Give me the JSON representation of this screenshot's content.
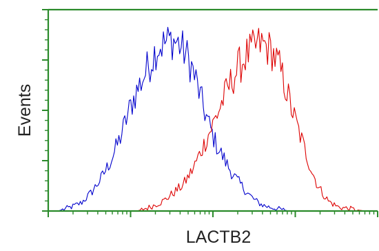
{
  "chart_data": {
    "type": "area",
    "title": "",
    "xlabel": "LACTB2",
    "ylabel": "Events",
    "xlim": [
      0,
      100
    ],
    "ylim": [
      0,
      100
    ],
    "x_scale": "log-decades",
    "grid": false,
    "legend": "none",
    "axis_color": "#2a8a2a",
    "series": [
      {
        "color": "#0000cc",
        "x": [
          3,
          7,
          10,
          13,
          16,
          19,
          22,
          25,
          27,
          29,
          31,
          33,
          35,
          37,
          39,
          41,
          43,
          45,
          47,
          49,
          51,
          53,
          55,
          57,
          59,
          61,
          63,
          65,
          67,
          70,
          73,
          77
        ],
        "y": [
          0,
          2,
          4,
          9,
          16,
          25,
          37,
          52,
          60,
          67,
          74,
          81,
          83,
          85,
          84,
          80,
          74,
          64,
          52,
          42,
          33,
          27,
          21,
          16,
          12,
          8,
          5,
          3,
          2,
          1,
          0,
          0
        ]
      },
      {
        "color": "#dd0000",
        "x": [
          27,
          31,
          35,
          38,
          41,
          44,
          47,
          50,
          53,
          56,
          58,
          60,
          62,
          64,
          66,
          68,
          70,
          72,
          74,
          76,
          78,
          80,
          82,
          85,
          88,
          92,
          96
        ],
        "y": [
          0,
          2,
          5,
          9,
          13,
          21,
          32,
          43,
          55,
          66,
          72,
          77,
          80,
          83,
          82,
          79,
          72,
          62,
          50,
          40,
          30,
          20,
          12,
          5,
          2,
          1,
          0
        ]
      }
    ]
  }
}
